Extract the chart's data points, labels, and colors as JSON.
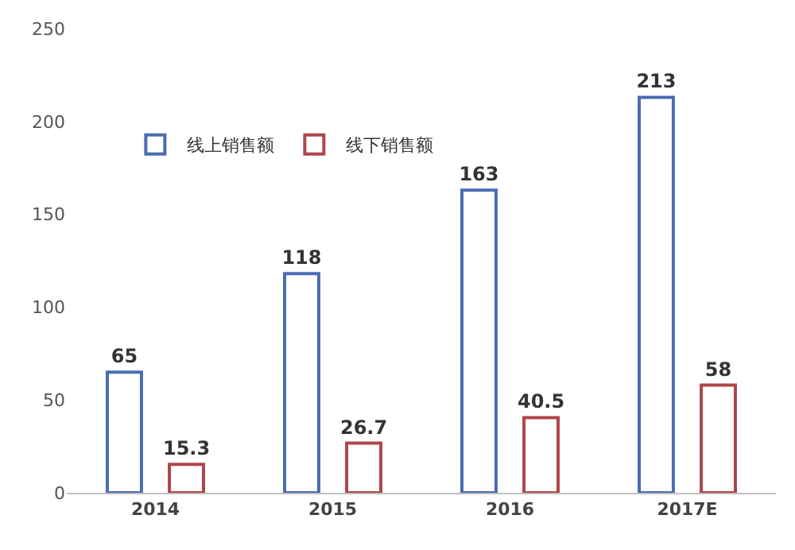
{
  "chart_data": {
    "type": "bar",
    "categories": [
      "2014",
      "2015",
      "2016",
      "2017E"
    ],
    "series": [
      {
        "name": "线上销售额",
        "color": "#4a6cb3",
        "values": [
          65,
          118,
          163,
          213
        ]
      },
      {
        "name": "线下销售额",
        "color": "#b0464a",
        "values": [
          15.3,
          26.7,
          40.5,
          58
        ]
      }
    ],
    "ylim": [
      0,
      250
    ],
    "yticks": [
      0,
      50,
      100,
      150,
      200,
      250
    ],
    "legend": "top left",
    "data_labels": true
  }
}
